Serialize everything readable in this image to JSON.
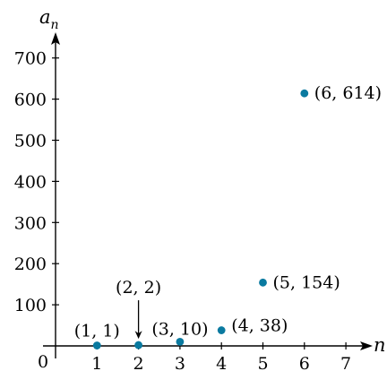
{
  "chart_data": {
    "type": "scatter",
    "title": "",
    "xlabel": "n",
    "ylabel": "a",
    "ylabel_subscript": "n",
    "origin_label": "0",
    "xlim": [
      0,
      7.6
    ],
    "ylim": [
      0,
      740
    ],
    "x_ticks": [
      1,
      2,
      3,
      4,
      5,
      6,
      7
    ],
    "y_ticks": [
      100,
      200,
      300,
      400,
      500,
      600,
      700
    ],
    "grid": false,
    "point_color": "#0a7aa0",
    "axis_color": "#000000",
    "series": [
      {
        "points": [
          {
            "x": 1,
            "y": 1,
            "label": "(1, 1)"
          },
          {
            "x": 2,
            "y": 2,
            "label": "(2, 2)"
          },
          {
            "x": 3,
            "y": 10,
            "label": "(3, 10)"
          },
          {
            "x": 4,
            "y": 38,
            "label": "(4, 38)"
          },
          {
            "x": 5,
            "y": 154,
            "label": "(5, 154)"
          },
          {
            "x": 6,
            "y": 614,
            "label": "(6, 614)"
          }
        ]
      }
    ]
  }
}
